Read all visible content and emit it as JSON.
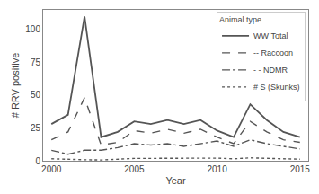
{
  "chart_data": {
    "type": "line",
    "x": [
      2000,
      2001,
      2002,
      2003,
      2004,
      2005,
      2006,
      2007,
      2008,
      2009,
      2010,
      2011,
      2012,
      2013,
      2014,
      2015
    ],
    "series": [
      {
        "name": "WW Total",
        "color": "#555555",
        "line_style": "solid",
        "values": [
          28,
          35,
          110,
          18,
          22,
          30,
          28,
          31,
          28,
          31,
          23,
          18,
          43,
          31,
          22,
          18
        ]
      },
      {
        "name": "-- Raccoon",
        "color": "#555555",
        "line_style": "dashed",
        "values": [
          16,
          22,
          48,
          12,
          14,
          23,
          21,
          24,
          21,
          24,
          18,
          13,
          30,
          22,
          16,
          14
        ]
      },
      {
        "name": "- - NDMR",
        "color": "#555555",
        "line_style": "dashdot",
        "values": [
          8,
          5,
          8,
          8,
          10,
          13,
          12,
          13,
          11,
          13,
          15,
          11,
          16,
          13,
          11,
          9
        ]
      },
      {
        "name": "# S (Skunks)",
        "color": "#555555",
        "line_style": "dotted",
        "values": [
          1.5,
          1.0,
          0.8,
          0.6,
          1.4,
          1.8,
          1.8,
          2.0,
          2.2,
          2.0,
          2.0,
          1.5,
          2.2,
          1.8,
          1.6,
          1.2
        ]
      }
    ],
    "xlabel": "Year",
    "ylabel": "# RRV positive",
    "xlim": [
      1999.5,
      2015.5
    ],
    "xticks": [
      2000,
      2005,
      2010,
      2015
    ],
    "ylim": [
      0,
      115
    ],
    "yticks": [
      0,
      25,
      50,
      75,
      100
    ],
    "grid": false,
    "legend": "upper right",
    "legend_title": "Animal type"
  }
}
